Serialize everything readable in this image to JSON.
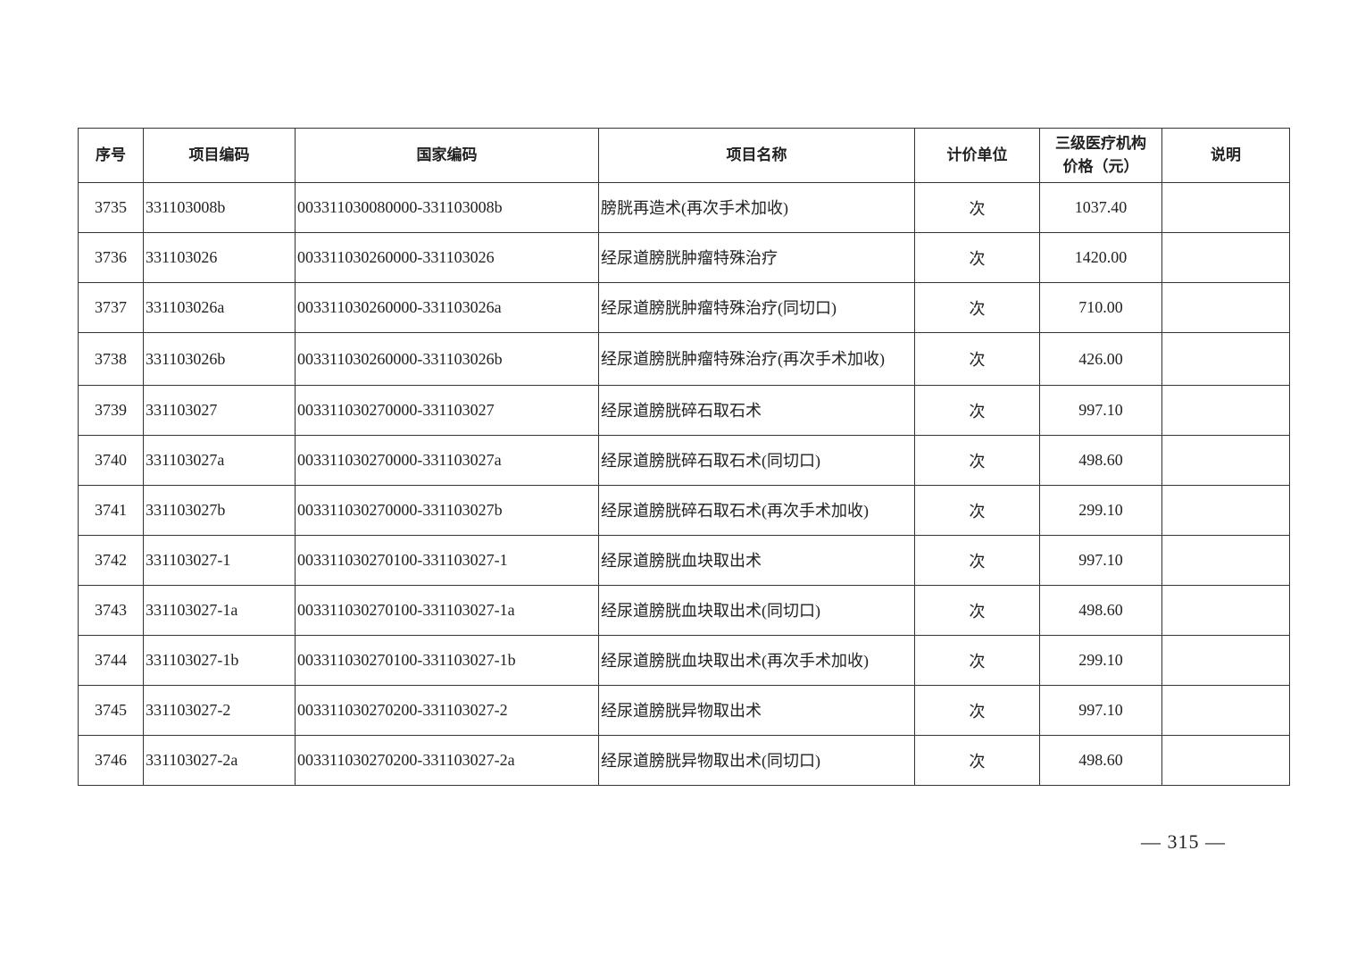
{
  "table": {
    "headers": [
      "序号",
      "项目编码",
      "国家编码",
      "项目名称",
      "计价单位",
      "三级医疗机构价格（元）",
      "说明"
    ],
    "header_price_line1": "三级医疗机构",
    "header_price_line2": "价格（元）",
    "rows": [
      {
        "no": "3735",
        "code": "331103008b",
        "national": "003311030080000-331103008b",
        "name": "膀胱再造术(再次手术加收)",
        "unit": "次",
        "price": "1037.40",
        "note": ""
      },
      {
        "no": "3736",
        "code": "331103026",
        "national": "003311030260000-331103026",
        "name": "经尿道膀胱肿瘤特殊治疗",
        "unit": "次",
        "price": "1420.00",
        "note": ""
      },
      {
        "no": "3737",
        "code": "331103026a",
        "national": "003311030260000-331103026a",
        "name": "经尿道膀胱肿瘤特殊治疗(同切口)",
        "unit": "次",
        "price": "710.00",
        "note": ""
      },
      {
        "no": "3738",
        "code": "331103026b",
        "national": "003311030260000-331103026b",
        "name": "经尿道膀胱肿瘤特殊治疗(再次手术加收)",
        "unit": "次",
        "price": "426.00",
        "note": ""
      },
      {
        "no": "3739",
        "code": "331103027",
        "national": "003311030270000-331103027",
        "name": "经尿道膀胱碎石取石术",
        "unit": "次",
        "price": "997.10",
        "note": ""
      },
      {
        "no": "3740",
        "code": "331103027a",
        "national": "003311030270000-331103027a",
        "name": "经尿道膀胱碎石取石术(同切口)",
        "unit": "次",
        "price": "498.60",
        "note": ""
      },
      {
        "no": "3741",
        "code": "331103027b",
        "national": "003311030270000-331103027b",
        "name": "经尿道膀胱碎石取石术(再次手术加收)",
        "unit": "次",
        "price": "299.10",
        "note": ""
      },
      {
        "no": "3742",
        "code": "331103027-1",
        "national": "003311030270100-331103027-1",
        "name": "经尿道膀胱血块取出术",
        "unit": "次",
        "price": "997.10",
        "note": ""
      },
      {
        "no": "3743",
        "code": "331103027-1a",
        "national": "003311030270100-331103027-1a",
        "name": "经尿道膀胱血块取出术(同切口)",
        "unit": "次",
        "price": "498.60",
        "note": ""
      },
      {
        "no": "3744",
        "code": "331103027-1b",
        "national": "003311030270100-331103027-1b",
        "name": "经尿道膀胱血块取出术(再次手术加收)",
        "unit": "次",
        "price": "299.10",
        "note": ""
      },
      {
        "no": "3745",
        "code": "331103027-2",
        "national": "003311030270200-331103027-2",
        "name": "经尿道膀胱异物取出术",
        "unit": "次",
        "price": "997.10",
        "note": ""
      },
      {
        "no": "3746",
        "code": "331103027-2a",
        "national": "003311030270200-331103027-2a",
        "name": "经尿道膀胱异物取出术(同切口)",
        "unit": "次",
        "price": "498.60",
        "note": ""
      }
    ]
  },
  "page_number": "— 315 —"
}
